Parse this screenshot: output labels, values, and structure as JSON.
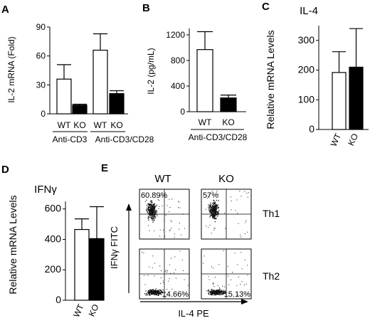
{
  "figure": {
    "panels": [
      "A",
      "B",
      "C",
      "D",
      "E"
    ]
  },
  "chart_data": [
    {
      "panel": "A",
      "type": "bar",
      "title": "",
      "ylabel": "IL-2 mRNA (Fold)",
      "xlabel": "",
      "ylim": [
        0,
        90
      ],
      "yticks": [
        "0",
        "30",
        "60",
        "90"
      ],
      "tick_values": [
        0,
        30,
        60,
        90
      ],
      "categories": [
        "WT",
        "KO",
        "WT",
        "KO"
      ],
      "groups": [
        "Anti-CD3",
        "Anti-CD3/CD28"
      ],
      "values": [
        36,
        9,
        66,
        21
      ],
      "errors": [
        15,
        1,
        17,
        3
      ],
      "fills": [
        "#ffffff",
        "#000000",
        "#ffffff",
        "#000000"
      ]
    },
    {
      "panel": "B",
      "type": "bar",
      "title": "",
      "ylabel": "IL-2 (pg/mL)",
      "xlabel": "Anti-CD3/CD28",
      "ylim": [
        0,
        1300
      ],
      "yticks": [
        "0",
        "400",
        "800",
        "1200"
      ],
      "tick_values": [
        0,
        400,
        800,
        1200
      ],
      "categories": [
        "WT",
        "KO"
      ],
      "values": [
        970,
        215
      ],
      "errors": [
        280,
        45
      ],
      "fills": [
        "#ffffff",
        "#000000"
      ]
    },
    {
      "panel": "C",
      "type": "bar",
      "title": "IL-4",
      "ylabel": "Relative mRNA Levels",
      "xlabel": "",
      "ylim": [
        0,
        350
      ],
      "yticks": [
        "0",
        "100",
        "200",
        "300"
      ],
      "tick_values": [
        0,
        100,
        200,
        300
      ],
      "categories": [
        "WT",
        "KO"
      ],
      "values": [
        192,
        210
      ],
      "errors": [
        70,
        130
      ],
      "fills": [
        "#ffffff",
        "#000000"
      ]
    },
    {
      "panel": "D",
      "type": "bar",
      "title": "IFNγ",
      "ylabel": "Relative mRNA Levels",
      "xlabel": "",
      "ylim": [
        0,
        650
      ],
      "yticks": [
        "0",
        "200",
        "400",
        "600"
      ],
      "tick_values": [
        0,
        200,
        400,
        600
      ],
      "categories": [
        "WT",
        "KO"
      ],
      "values": [
        465,
        405
      ],
      "errors": [
        70,
        210
      ],
      "fills": [
        "#ffffff",
        "#000000"
      ]
    },
    {
      "panel": "E",
      "type": "scatter",
      "title": "",
      "columns": [
        "WT",
        "KO"
      ],
      "rows": [
        "Th1",
        "Th2"
      ],
      "ylabel": "IFNγ FITC",
      "xlabel": "IL-4 PE",
      "quadrant_labels": [
        {
          "row": "Th1",
          "column": "WT",
          "quadrant": "upper-left",
          "label": "60.89%"
        },
        {
          "row": "Th1",
          "column": "KO",
          "quadrant": "upper-left",
          "label": "57%"
        },
        {
          "row": "Th2",
          "column": "WT",
          "quadrant": "lower-right",
          "label": "14.66%"
        },
        {
          "row": "Th2",
          "column": "KO",
          "quadrant": "lower-right",
          "label": "15.13%"
        }
      ]
    }
  ]
}
